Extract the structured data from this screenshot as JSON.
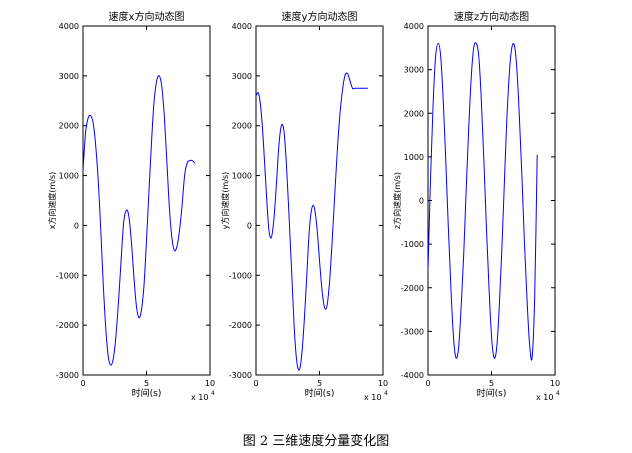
{
  "caption": "图 2  三维速度分量变化图",
  "chart_data": [
    {
      "type": "line",
      "title": "速度x方向动态图",
      "xlabel": "时间(s)",
      "ylabel": "x方向速度(m/s)",
      "x_exponent_label": "x 10",
      "x_exponent": "4",
      "xlim": [
        0,
        100000
      ],
      "ylim": [
        -3000,
        4000
      ],
      "xticks": [
        0,
        50000,
        100000
      ],
      "xtick_labels": [
        "0",
        "5",
        "10"
      ],
      "yticks": [
        -3000,
        -2000,
        -1000,
        0,
        1000,
        2000,
        3000,
        4000
      ],
      "ytick_labels": [
        "-3000",
        "-2000",
        "-1000",
        "0",
        "1000",
        "2000",
        "3000",
        "4000"
      ],
      "grid": false,
      "color": "#0000ff",
      "series": [
        {
          "x": [
            0,
            2000,
            4000,
            6000,
            8000,
            10000,
            12000,
            14000,
            16000,
            18000,
            20000,
            22000,
            24000,
            26000,
            28000,
            30000,
            32000,
            34000,
            36000,
            38000,
            40000,
            42000,
            44000,
            46000,
            48000,
            50000,
            52000,
            54000,
            56000,
            58000,
            60000,
            62000,
            64000,
            66000,
            68000,
            70000,
            72000,
            74000,
            76000,
            78000,
            80000,
            82000,
            84000,
            86000,
            88000
          ],
          "y": [
            1100,
            1850,
            2150,
            2200,
            2050,
            1600,
            900,
            -100,
            -1200,
            -2100,
            -2650,
            -2800,
            -2650,
            -2200,
            -1500,
            -700,
            50,
            300,
            200,
            -300,
            -1000,
            -1600,
            -1850,
            -1700,
            -1200,
            -300,
            700,
            1700,
            2500,
            2900,
            3000,
            2800,
            2200,
            1300,
            350,
            -250,
            -500,
            -420,
            -100,
            400,
            1000,
            1250,
            1300,
            1300,
            1250
          ]
        }
      ]
    },
    {
      "type": "line",
      "title": "速度y方向动态图",
      "xlabel": "时间(s)",
      "ylabel": "y方向速度(m/s)",
      "x_exponent_label": "x 10",
      "x_exponent": "4",
      "xlim": [
        0,
        100000
      ],
      "ylim": [
        -3000,
        4000
      ],
      "xticks": [
        0,
        50000,
        100000
      ],
      "xtick_labels": [
        "0",
        "5",
        "10"
      ],
      "yticks": [
        -3000,
        -2000,
        -1000,
        0,
        1000,
        2000,
        3000,
        4000
      ],
      "ytick_labels": [
        "-3000",
        "-2000",
        "-1000",
        "0",
        "1000",
        "2000",
        "3000",
        "4000"
      ],
      "grid": false,
      "color": "#0000ff",
      "series": [
        {
          "x": [
            0,
            2000,
            4000,
            6000,
            8000,
            10000,
            12000,
            14000,
            16000,
            18000,
            20000,
            22000,
            24000,
            26000,
            28000,
            30000,
            32000,
            34000,
            36000,
            38000,
            40000,
            42000,
            44000,
            46000,
            48000,
            50000,
            52000,
            54000,
            56000,
            58000,
            60000,
            62000,
            64000,
            66000,
            68000,
            70000,
            72000,
            74000,
            76000,
            78000,
            80000,
            82000,
            84000,
            86000,
            88000
          ],
          "y": [
            2600,
            2650,
            2300,
            1600,
            700,
            -50,
            -250,
            100,
            800,
            1600,
            2000,
            1900,
            1200,
            200,
            -900,
            -2000,
            -2700,
            -2900,
            -2600,
            -1900,
            -1000,
            -100,
            350,
            350,
            -50,
            -700,
            -1300,
            -1650,
            -1600,
            -1100,
            -300,
            600,
            1500,
            2200,
            2700,
            3000,
            3050,
            2900,
            2750,
            2750,
            2750,
            2750,
            2750,
            2750,
            2750
          ]
        }
      ]
    },
    {
      "type": "line",
      "title": "速度z方向动态图",
      "xlabel": "时间(s)",
      "ylabel": "z方向速度(m/s)",
      "x_exponent_label": "x 10",
      "x_exponent": "4",
      "xlim": [
        0,
        100000
      ],
      "ylim": [
        -4000,
        4000
      ],
      "xticks": [
        0,
        50000,
        100000
      ],
      "xtick_labels": [
        "0",
        "5",
        "10"
      ],
      "yticks": [
        -4000,
        -3000,
        -2000,
        -1000,
        0,
        1000,
        2000,
        3000,
        4000
      ],
      "ytick_labels": [
        "-4000",
        "-3000",
        "-2000",
        "-1000",
        "0",
        "1000",
        "2000",
        "3000",
        "4000"
      ],
      "grid": false,
      "color": "#0000ff",
      "series": [
        {
          "x": [
            0,
            2000,
            4000,
            6000,
            8000,
            10000,
            12000,
            14000,
            16000,
            18000,
            20000,
            22000,
            24000,
            26000,
            28000,
            30000,
            32000,
            34000,
            36000,
            38000,
            40000,
            42000,
            44000,
            46000,
            48000,
            50000,
            52000,
            54000,
            56000,
            58000,
            60000,
            62000,
            64000,
            66000,
            68000,
            70000,
            72000,
            74000,
            76000,
            78000,
            80000,
            82000,
            84000,
            86000
          ],
          "y": [
            -1600,
            500,
            2200,
            3300,
            3600,
            3300,
            2300,
            900,
            -600,
            -2000,
            -3100,
            -3600,
            -3400,
            -2500,
            -1300,
            200,
            1600,
            2800,
            3500,
            3600,
            3300,
            2300,
            900,
            -600,
            -2000,
            -3100,
            -3600,
            -3400,
            -2500,
            -1200,
            300,
            1800,
            2900,
            3500,
            3550,
            3000,
            1900,
            500,
            -1000,
            -2300,
            -3300,
            -3600,
            -2200,
            1050
          ]
        }
      ]
    }
  ]
}
